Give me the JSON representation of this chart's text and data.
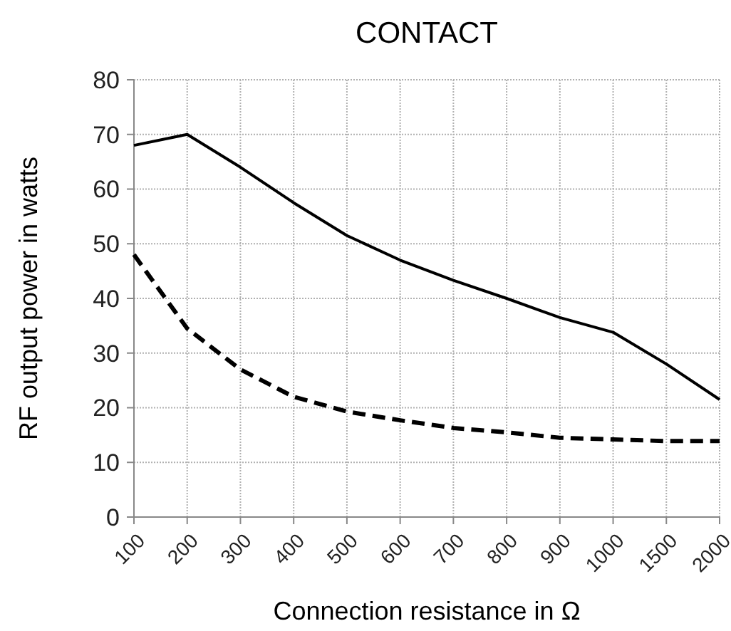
{
  "chart_data": {
    "type": "line",
    "title": "CONTACT",
    "xlabel": "Connection resistance in Ω",
    "ylabel": "RF output power in watts",
    "categories": [
      "100",
      "200",
      "300",
      "400",
      "500",
      "600",
      "700",
      "800",
      "900",
      "1000",
      "1500",
      "2000"
    ],
    "series": [
      {
        "color": "#000000",
        "line_style": "solid",
        "values": [
          68,
          70,
          64,
          57.5,
          51.5,
          47,
          43.3,
          40,
          36.5,
          33.8,
          28,
          21.5
        ]
      },
      {
        "color": "#000000",
        "line_style": "dashed",
        "values": [
          48,
          34.5,
          27,
          22,
          19.3,
          17.7,
          16.3,
          15.5,
          14.5,
          14.2,
          13.9,
          13.9
        ]
      }
    ],
    "ylim": [
      0,
      80
    ],
    "yticks": [
      0,
      10,
      20,
      30,
      40,
      50,
      60,
      70,
      80
    ],
    "grid": true,
    "marker": "none"
  }
}
